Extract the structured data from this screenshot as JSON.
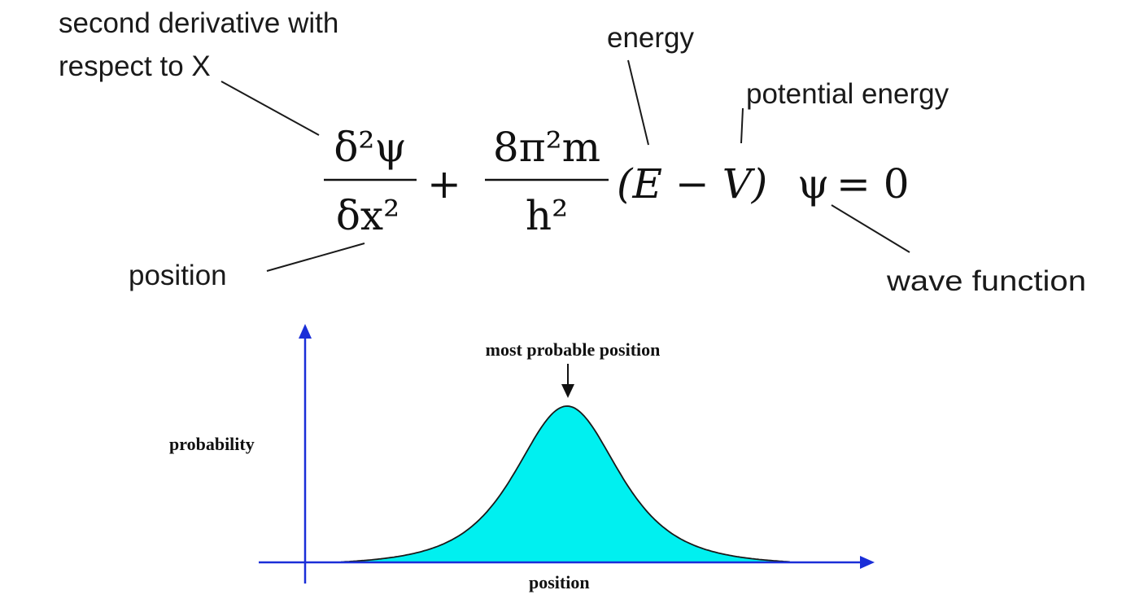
{
  "annotations": {
    "second_derivative_line1": "second derivative with",
    "second_derivative_line2": "respect to X",
    "energy": "energy",
    "potential_energy": "potential energy",
    "position": "position",
    "wave_function": "wave function"
  },
  "equation": {
    "numerator_left": "δ²ψ",
    "denominator_left": "δx²",
    "plus": "+",
    "numerator_right": "8π²m",
    "denominator_right": "h²",
    "bracket_term": "(E − V)",
    "psi": "ψ",
    "equals_zero": "= 0"
  },
  "chart_data": {
    "type": "area",
    "xlabel": "position",
    "ylabel": "probability",
    "annotation": "most probable position",
    "fill_color": "#00f0f0",
    "axis_color": "#1a2ed8",
    "distribution": "bell",
    "peak_location": "center",
    "grid": false
  }
}
